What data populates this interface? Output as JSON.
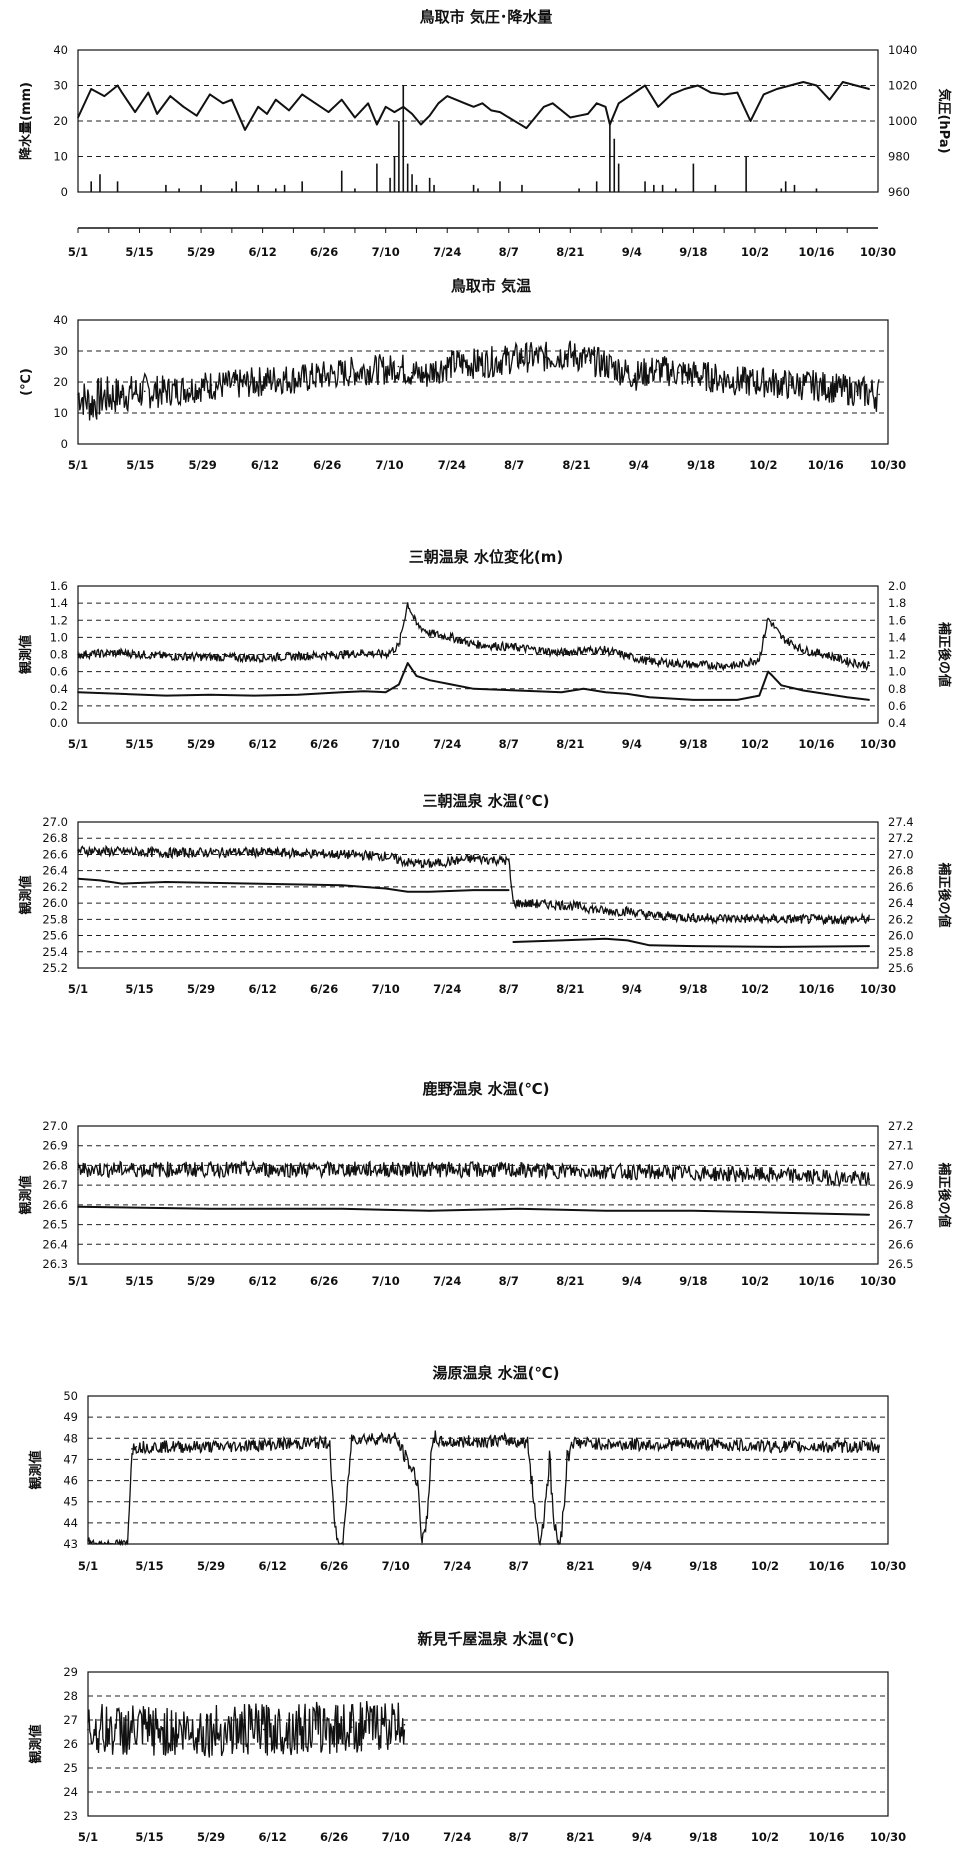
{
  "xticks": [
    "5/1",
    "5/15",
    "5/29",
    "6/12",
    "6/26",
    "7/10",
    "7/24",
    "8/7",
    "8/21",
    "9/4",
    "9/18",
    "10/2",
    "10/16",
    "10/30"
  ],
  "chart_data": [
    {
      "id": "tottori-pressure-precip",
      "type": "line",
      "title": "鳥取市 気圧･降水量",
      "ylabel": "降水量(mm)",
      "y2label": "気圧(hPa)",
      "ylim": [
        0,
        40
      ],
      "yticks": [
        0,
        10,
        20,
        30,
        40
      ],
      "y2lim": [
        960,
        1040
      ],
      "y2ticks": [
        960,
        980,
        1000,
        1020,
        1040
      ],
      "grid": "dashed",
      "series": [
        {
          "axis": "left",
          "style": "bar",
          "x": [
            3,
            5,
            9,
            20,
            23,
            28,
            35,
            36,
            41,
            45,
            47,
            51,
            60,
            63,
            68,
            71,
            72,
            73,
            74,
            75,
            76,
            77,
            80,
            81,
            90,
            91,
            96,
            101,
            114,
            118,
            121,
            122,
            123,
            129,
            131,
            133,
            136,
            140,
            145,
            152,
            160,
            161,
            163,
            168
          ],
          "values": [
            3,
            5,
            3,
            2,
            1,
            2,
            1,
            3,
            2,
            1,
            2,
            3,
            6,
            1,
            8,
            4,
            10,
            20,
            30,
            8,
            5,
            2,
            4,
            2,
            2,
            1,
            3,
            2,
            1,
            3,
            20,
            15,
            8,
            3,
            2,
            2,
            1,
            8,
            2,
            10,
            1,
            3,
            2,
            1
          ]
        },
        {
          "axis": "right",
          "style": "line",
          "x": [
            0,
            3,
            6,
            9,
            10,
            13,
            16,
            18,
            21,
            24,
            27,
            30,
            33,
            35,
            38,
            41,
            43,
            45,
            48,
            51,
            54,
            57,
            60,
            63,
            66,
            68,
            70,
            72,
            74,
            76,
            78,
            80,
            82,
            84,
            86,
            88,
            90,
            92,
            94,
            96,
            98,
            100,
            102,
            104,
            106,
            108,
            110,
            112,
            114,
            116,
            118,
            120,
            121,
            123,
            126,
            129,
            132,
            135,
            138,
            141,
            144,
            147,
            150,
            153,
            156,
            159,
            162,
            165,
            168,
            171,
            174,
            177,
            180
          ],
          "values": [
            1002,
            1018,
            1014,
            1020,
            1016,
            1005,
            1016,
            1004,
            1014,
            1008,
            1003,
            1015,
            1010,
            1012,
            995,
            1008,
            1004,
            1012,
            1006,
            1015,
            1010,
            1005,
            1012,
            1002,
            1010,
            998,
            1008,
            1005,
            1008,
            1004,
            998,
            1003,
            1010,
            1014,
            1012,
            1010,
            1008,
            1010,
            1006,
            1005,
            1002,
            999,
            996,
            1002,
            1008,
            1010,
            1006,
            1002,
            1003,
            1004,
            1010,
            1008,
            998,
            1010,
            1015,
            1020,
            1008,
            1015,
            1018,
            1020,
            1016,
            1015,
            1016,
            1000,
            1015,
            1018,
            1020,
            1022,
            1020,
            1012,
            1022,
            1020,
            1018
          ]
        }
      ]
    },
    {
      "id": "tottori-temp",
      "type": "line",
      "title": "鳥取市 気温",
      "ylabel": "(℃)",
      "ylim": [
        0,
        40
      ],
      "yticks": [
        0,
        10,
        20,
        30,
        40
      ],
      "grid": "dashed",
      "series": [
        {
          "style": "noisy",
          "x": [
            0,
            3,
            5,
            10,
            15,
            20,
            25,
            30,
            35,
            40,
            45,
            50,
            55,
            60,
            65,
            70,
            72,
            75,
            78,
            80,
            85,
            90,
            95,
            100,
            105,
            110,
            115,
            120,
            125,
            130,
            135,
            140,
            145,
            150,
            155,
            160,
            165,
            170,
            175,
            180
          ],
          "values": [
            16,
            13,
            15,
            16,
            17,
            17,
            18,
            19,
            19,
            20,
            21,
            21,
            22,
            23,
            24,
            24,
            25,
            23,
            22,
            24,
            26,
            26,
            27,
            28,
            28,
            29,
            27,
            25,
            22,
            24,
            23,
            22,
            21,
            20,
            20,
            19,
            19,
            18,
            17,
            16
          ],
          "noise": [
            6,
            7,
            7,
            6,
            6,
            5,
            5,
            5,
            5,
            5,
            5,
            5,
            5,
            5,
            5,
            5,
            5,
            5,
            5,
            5,
            5,
            5,
            5,
            5,
            5,
            5,
            5,
            5,
            5,
            5,
            5,
            5,
            5,
            5,
            5,
            5,
            5,
            5,
            5,
            6
          ]
        }
      ]
    },
    {
      "id": "misasa-water-level",
      "type": "line",
      "title": "三朝温泉 水位変化(m)",
      "ylabel": "観測値",
      "y2label": "補正後の値",
      "ylim": [
        0,
        1.6
      ],
      "yticks": [
        0.0,
        0.2,
        0.4,
        0.6,
        0.8,
        1.0,
        1.2,
        1.4,
        1.6
      ],
      "y2lim": [
        0.4,
        2.0
      ],
      "y2ticks": [
        0.4,
        0.6,
        0.8,
        1.0,
        1.2,
        1.4,
        1.6,
        1.8,
        2.0
      ],
      "grid": "dashed",
      "series": [
        {
          "axis": "right",
          "style": "noisy",
          "x": [
            0,
            10,
            20,
            30,
            40,
            50,
            60,
            65,
            70,
            73,
            75,
            77,
            80,
            85,
            90,
            100,
            110,
            115,
            120,
            125,
            130,
            140,
            150,
            155,
            157,
            158,
            160,
            165,
            170,
            175,
            180
          ],
          "values": [
            1.2,
            1.22,
            1.18,
            1.17,
            1.16,
            1.18,
            1.2,
            1.22,
            1.2,
            1.3,
            1.8,
            1.55,
            1.45,
            1.4,
            1.32,
            1.28,
            1.22,
            1.25,
            1.25,
            1.18,
            1.12,
            1.08,
            1.07,
            1.15,
            1.62,
            1.55,
            1.4,
            1.25,
            1.2,
            1.12,
            1.07
          ],
          "noise": [
            0.05,
            0.05,
            0.05,
            0.05,
            0.05,
            0.05,
            0.05,
            0.05,
            0.05,
            0.05,
            0.05,
            0.05,
            0.05,
            0.05,
            0.05,
            0.05,
            0.05,
            0.05,
            0.05,
            0.05,
            0.05,
            0.05,
            0.05,
            0.05,
            0.05,
            0.05,
            0.05,
            0.05,
            0.05,
            0.05,
            0.05
          ]
        },
        {
          "axis": "left",
          "style": "line",
          "x": [
            0,
            10,
            20,
            30,
            40,
            50,
            60,
            65,
            70,
            73,
            75,
            77,
            80,
            85,
            90,
            100,
            110,
            115,
            120,
            125,
            130,
            140,
            150,
            155,
            157,
            158,
            160,
            165,
            170,
            175,
            180
          ],
          "values": [
            0.36,
            0.34,
            0.32,
            0.33,
            0.32,
            0.33,
            0.36,
            0.37,
            0.36,
            0.45,
            0.7,
            0.55,
            0.5,
            0.45,
            0.4,
            0.38,
            0.36,
            0.4,
            0.36,
            0.34,
            0.3,
            0.27,
            0.27,
            0.32,
            0.6,
            0.55,
            0.44,
            0.38,
            0.34,
            0.3,
            0.27
          ]
        }
      ]
    },
    {
      "id": "misasa-water-temp",
      "type": "line",
      "title": "三朝温泉 水温(℃)",
      "ylabel": "観測値",
      "y2label": "補正後の値",
      "ylim": [
        25.2,
        27.0
      ],
      "yticks": [
        25.2,
        25.4,
        25.6,
        25.8,
        26.0,
        26.2,
        26.4,
        26.6,
        26.8,
        27.0
      ],
      "y2lim": [
        25.6,
        27.4
      ],
      "y2ticks": [
        25.6,
        25.8,
        26.0,
        26.2,
        26.4,
        26.6,
        26.8,
        27.0,
        27.2,
        27.4
      ],
      "grid": "dashed",
      "series": [
        {
          "axis": "right",
          "style": "noisy",
          "x": [
            0,
            20,
            40,
            60,
            70,
            75,
            80,
            90,
            98,
            99,
            110,
            115,
            120,
            125,
            130,
            140,
            160,
            180
          ],
          "values": [
            27.05,
            27.02,
            27.03,
            27.0,
            26.98,
            26.9,
            26.88,
            26.95,
            26.92,
            26.4,
            26.38,
            26.35,
            26.3,
            26.3,
            26.25,
            26.22,
            26.2,
            26.2
          ],
          "noise": [
            0.06,
            0.06,
            0.06,
            0.06,
            0.06,
            0.06,
            0.06,
            0.06,
            0.06,
            0.06,
            0.06,
            0.06,
            0.06,
            0.06,
            0.06,
            0.06,
            0.06,
            0.06
          ]
        },
        {
          "axis": "left",
          "style": "line",
          "gap_after_x": 98,
          "x": [
            0,
            5,
            10,
            20,
            40,
            60,
            70,
            75,
            80,
            90,
            98,
            99,
            110,
            120,
            125,
            130,
            140,
            160,
            180
          ],
          "values": [
            26.3,
            26.28,
            26.24,
            26.26,
            26.24,
            26.22,
            26.18,
            26.14,
            26.14,
            26.16,
            26.16,
            25.52,
            25.54,
            25.56,
            25.54,
            25.48,
            25.47,
            25.46,
            25.47
          ]
        }
      ]
    },
    {
      "id": "shikano-water-temp",
      "type": "line",
      "title": "鹿野温泉 水温(℃)",
      "ylabel": "観測値",
      "y2label": "補正後の値",
      "ylim": [
        26.3,
        27.0
      ],
      "yticks": [
        26.3,
        26.4,
        26.5,
        26.6,
        26.7,
        26.8,
        26.9,
        27.0
      ],
      "y2lim": [
        26.5,
        27.2
      ],
      "y2ticks": [
        26.5,
        26.6,
        26.7,
        26.8,
        26.9,
        27.0,
        27.1,
        27.2
      ],
      "grid": "dashed",
      "series": [
        {
          "axis": "right",
          "style": "noisy",
          "x": [
            0,
            40,
            80,
            120,
            160,
            180
          ],
          "values": [
            26.98,
            26.98,
            26.98,
            26.97,
            26.95,
            26.93
          ],
          "noise": [
            0.04,
            0.04,
            0.04,
            0.04,
            0.04,
            0.04
          ]
        },
        {
          "axis": "left",
          "style": "line",
          "x": [
            0,
            30,
            60,
            80,
            100,
            120,
            140,
            160,
            180
          ],
          "values": [
            26.59,
            26.58,
            26.58,
            26.57,
            26.58,
            26.57,
            26.57,
            26.56,
            26.55
          ]
        }
      ]
    },
    {
      "id": "yubara-water-temp",
      "type": "line",
      "title": "湯原温泉 水温(℃)",
      "ylabel": "観測値",
      "ylim": [
        43,
        50
      ],
      "yticks": [
        43,
        44,
        45,
        46,
        47,
        48,
        49,
        50
      ],
      "grid": "dashed",
      "series": [
        {
          "style": "noisy",
          "x": [
            0,
            1,
            2,
            9,
            10,
            11,
            20,
            30,
            40,
            55,
            56,
            57,
            58,
            60,
            70,
            75,
            76,
            77,
            78,
            79,
            80,
            95,
            100,
            101,
            102,
            103,
            104,
            105,
            106,
            107,
            108,
            109,
            110,
            120,
            140,
            160,
            180
          ],
          "values": [
            43.2,
            43.0,
            43.0,
            43.0,
            47.5,
            47.6,
            47.6,
            47.6,
            47.7,
            47.8,
            44.0,
            43.0,
            43.0,
            48.0,
            48.0,
            46.0,
            43.0,
            44.0,
            47.0,
            48.1,
            47.8,
            47.9,
            47.8,
            46.0,
            44.0,
            43.0,
            45.0,
            47.0,
            44.0,
            43.0,
            44.0,
            47.0,
            47.8,
            47.7,
            47.7,
            47.6,
            47.6
          ],
          "noise": [
            0.2,
            0.2,
            0.2,
            0.2,
            0.3,
            0.3,
            0.3,
            0.3,
            0.3,
            0.3,
            0.3,
            0.2,
            0.2,
            0.3,
            0.3,
            0.4,
            0.3,
            0.4,
            0.5,
            0.3,
            0.3,
            0.3,
            0.3,
            0.6,
            0.6,
            0.3,
            0.6,
            0.6,
            0.6,
            0.3,
            0.6,
            0.6,
            0.3,
            0.3,
            0.3,
            0.3,
            0.3
          ]
        }
      ]
    },
    {
      "id": "niimi-chiya-water-temp",
      "type": "line",
      "title": "新見千屋温泉 水温(℃)",
      "ylabel": "観測値",
      "ylim": [
        23,
        29
      ],
      "yticks": [
        23,
        24,
        25,
        26,
        27,
        28,
        29
      ],
      "grid": "dashed",
      "series": [
        {
          "style": "noisy",
          "x": [
            0,
            20,
            40,
            60,
            72
          ],
          "values": [
            26.6,
            26.5,
            26.6,
            26.7,
            26.8
          ],
          "noise": [
            1.1,
            1.1,
            1.1,
            1.1,
            1.0
          ]
        }
      ]
    }
  ]
}
